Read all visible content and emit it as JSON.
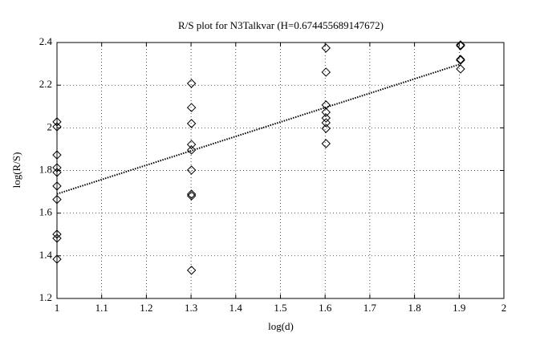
{
  "chart_data": {
    "type": "scatter",
    "title": "R/S plot for N3Talkvar (H=0.674455689147672)",
    "xlabel": "log(d)",
    "ylabel": "log(R/S)",
    "xlim": [
      1,
      2
    ],
    "xticks": [
      1,
      1.1,
      1.2,
      1.3,
      1.4,
      1.5,
      1.6,
      1.7,
      1.8,
      1.9,
      2
    ],
    "ylim": [
      1.2,
      2.4
    ],
    "yticks": [
      1.2,
      1.4,
      1.6,
      1.8,
      2,
      2.2,
      2.4
    ],
    "grid": true,
    "color": "#000000",
    "x": [
      1,
      1,
      1,
      1,
      1,
      1,
      1,
      1,
      1,
      1,
      1.301,
      1.301,
      1.301,
      1.301,
      1.301,
      1.301,
      1.301,
      1.301,
      1.301,
      1.602,
      1.602,
      1.602,
      1.602,
      1.602,
      1.602,
      1.602,
      1.602,
      1.903,
      1.903,
      1.903,
      1.903,
      1.903
    ],
    "values": [
      2.028,
      2.005,
      1.873,
      1.813,
      1.791,
      1.727,
      1.664,
      1.501,
      1.482,
      1.384,
      2.208,
      2.095,
      2.02,
      1.922,
      1.896,
      1.802,
      1.689,
      1.681,
      1.332,
      2.374,
      2.261,
      2.107,
      2.073,
      2.046,
      2.024,
      1.997,
      1.926,
      2.389,
      2.385,
      2.321,
      2.317,
      2.276
    ],
    "fit": {
      "x": [
        1,
        1.903
      ],
      "values": [
        1.69,
        2.299
      ]
    }
  }
}
